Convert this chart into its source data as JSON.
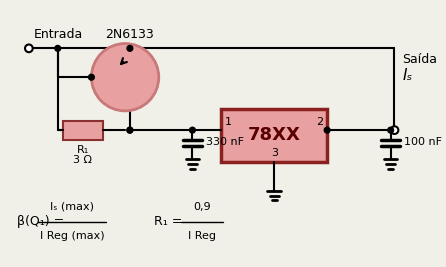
{
  "bg_color": "#f0f0e8",
  "transistor_circle_color": "#c87878",
  "transistor_fill": "#e8a0a0",
  "resistor_fill": "#e8a0a0",
  "resistor_border": "#8b3030",
  "ic_fill": "#e8a0a0",
  "ic_border": "#8b2020",
  "wire_color": "#000000",
  "text_color": "#000000",
  "ground_color": "#000000",
  "title": "Entrada",
  "transistor_label": "2N6133",
  "ic_label": "78XX",
  "r1_label": "R₁",
  "r1_value": "3 Ω",
  "cap1_value": "330 nF",
  "cap2_value": "100 nF",
  "saida_label": "Saída",
  "is_label": "Iₛ",
  "pin1": "1",
  "pin2": "2",
  "pin3": "3",
  "formula1": "β(Q₁) = ",
  "formula1_num": "Iₛ (max)",
  "formula1_den": "I Reg (max)",
  "formula2": "R₁ = ",
  "formula2_num": "0,9",
  "formula2_den": "I Reg"
}
